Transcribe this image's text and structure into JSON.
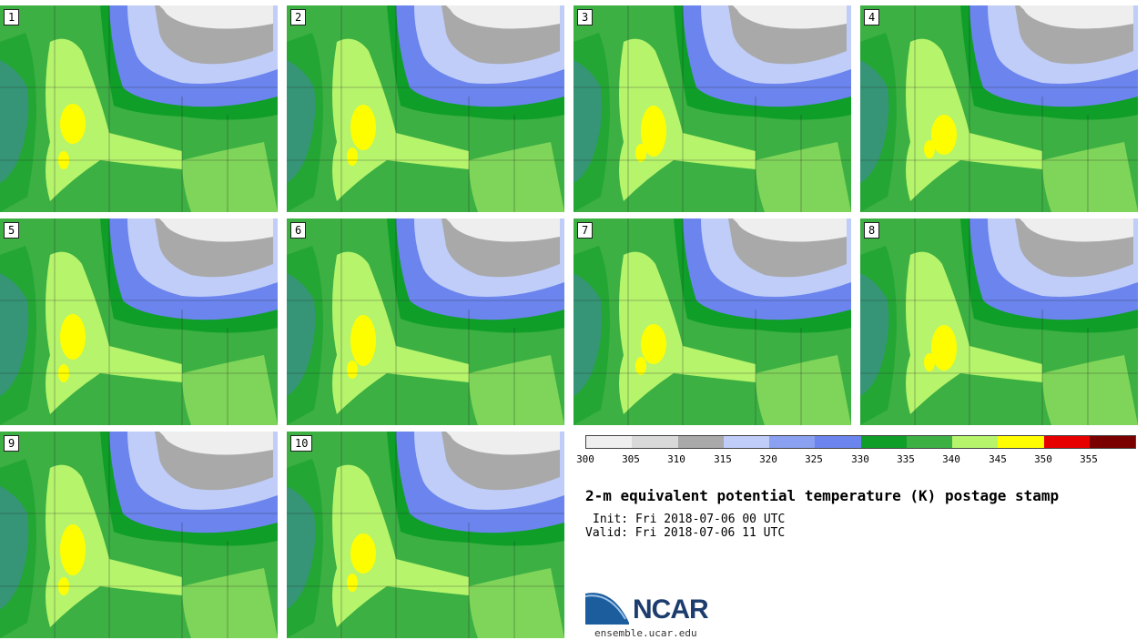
{
  "panels": [
    {
      "label": "1"
    },
    {
      "label": "2"
    },
    {
      "label": "3"
    },
    {
      "label": "4"
    },
    {
      "label": "5"
    },
    {
      "label": "6"
    },
    {
      "label": "7"
    },
    {
      "label": "8"
    },
    {
      "label": "9"
    },
    {
      "label": "10"
    }
  ],
  "colorbar": {
    "colors": [
      "#efefef",
      "#d9d9d9",
      "#a9a9a9",
      "#bfcdf8",
      "#8aa0f0",
      "#6b84ee",
      "#0f9e28",
      "#3cb043",
      "#b6f46c",
      "#fffe00",
      "#e70000",
      "#7a0000"
    ],
    "ticks": [
      "300",
      "305",
      "310",
      "315",
      "320",
      "325",
      "330",
      "335",
      "340",
      "345",
      "350",
      "355"
    ]
  },
  "title": "2-m equivalent potential temperature (K) postage stamp",
  "init": "Init: Fri 2018-07-06 00 UTC",
  "valid": "Valid: Fri 2018-07-06 11 UTC",
  "logo": {
    "text": "NCAR",
    "site": "ensemble.ucar.edu"
  }
}
